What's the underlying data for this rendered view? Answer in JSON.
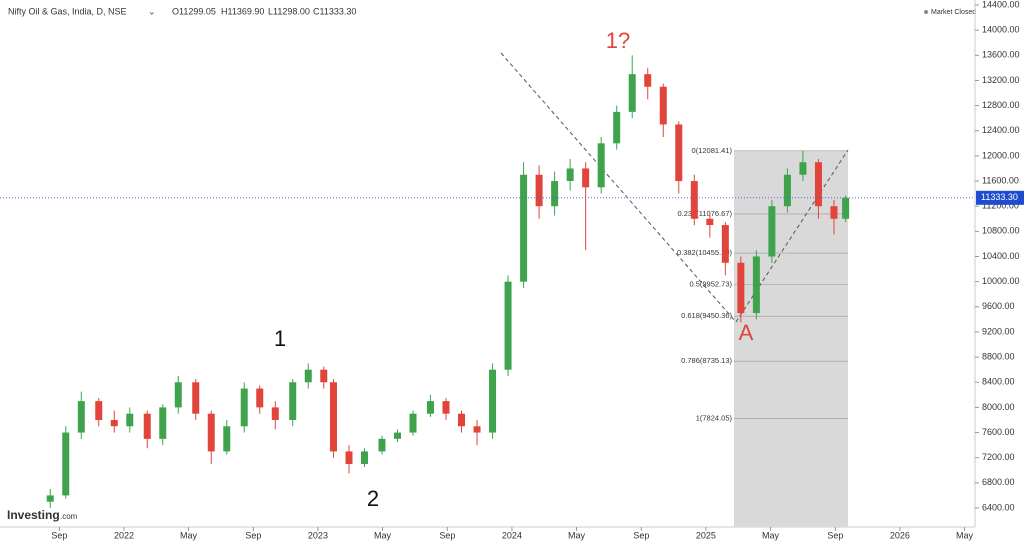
{
  "header": {
    "title": "Nifty Oil & Gas, India, D, NSE",
    "ohlc": [
      "O11299.05",
      "H11369.90",
      "L11298.00",
      "C11333.30"
    ],
    "status": "Market Closed",
    "logo": "Investing",
    "logo_suffix": ".com"
  },
  "chart_data": {
    "type": "candlestick",
    "x": [
      2021.62,
      2021.7,
      2021.78,
      2021.87,
      2021.95,
      2022.03,
      2022.12,
      2022.2,
      2022.28,
      2022.37,
      2022.45,
      2022.53,
      2022.62,
      2022.7,
      2022.78,
      2022.87,
      2022.95,
      2023.03,
      2023.08,
      2023.16,
      2023.24,
      2023.33,
      2023.41,
      2023.49,
      2023.58,
      2023.66,
      2023.74,
      2023.82,
      2023.9,
      2023.98,
      2024.06,
      2024.14,
      2024.22,
      2024.3,
      2024.38,
      2024.46,
      2024.54,
      2024.62,
      2024.7,
      2024.78,
      2024.86,
      2024.94,
      2025.02,
      2025.1,
      2025.18,
      2025.26,
      2025.34,
      2025.42,
      2025.5,
      2025.58,
      2025.66,
      2025.72
    ],
    "open": [
      6500,
      6600,
      7600,
      8100,
      7800,
      7700,
      7900,
      7500,
      8000,
      8400,
      7900,
      7300,
      7700,
      8300,
      8000,
      7800,
      8400,
      8600,
      8400,
      7300,
      7100,
      7300,
      7500,
      7600,
      7900,
      8100,
      7900,
      7700,
      7600,
      8600,
      10000,
      11700,
      11200,
      11600,
      11800,
      11500,
      12200,
      12700,
      13300,
      13100,
      12500,
      11600,
      11000,
      10900,
      10300,
      9500,
      10400,
      11200,
      11700,
      11900,
      11200,
      11000
    ],
    "high": [
      6700,
      7700,
      8250,
      8150,
      7950,
      8000,
      7950,
      8050,
      8500,
      8450,
      7950,
      7800,
      8400,
      8350,
      8100,
      8450,
      8700,
      8650,
      8450,
      7400,
      7350,
      7550,
      7650,
      7950,
      8200,
      8150,
      7950,
      7800,
      8700,
      10100,
      11900,
      11850,
      11750,
      11950,
      11900,
      12300,
      12800,
      13600,
      13400,
      13150,
      12550,
      11700,
      11100,
      10950,
      10400,
      10500,
      11300,
      11800,
      12081,
      11950,
      11300,
      11370
    ],
    "low": [
      6400,
      6550,
      7500,
      7700,
      7600,
      7600,
      7350,
      7400,
      7900,
      7800,
      7100,
      7250,
      7600,
      7900,
      7650,
      7700,
      8300,
      8300,
      7200,
      6950,
      7050,
      7250,
      7450,
      7550,
      7850,
      7800,
      7600,
      7400,
      7500,
      8500,
      9900,
      11000,
      11050,
      11450,
      10500,
      11400,
      12100,
      12600,
      12900,
      12300,
      11400,
      10900,
      10700,
      10100,
      9350,
      9400,
      10300,
      11100,
      11600,
      11000,
      10750,
      10950
    ],
    "close": [
      6600,
      7600,
      8100,
      7800,
      7700,
      7900,
      7500,
      8000,
      8400,
      7900,
      7300,
      7700,
      8300,
      8000,
      7800,
      8400,
      8600,
      8400,
      7300,
      7100,
      7300,
      7500,
      7600,
      7900,
      8100,
      7900,
      7700,
      7600,
      8600,
      10000,
      11700,
      11200,
      11600,
      11800,
      11500,
      12200,
      12700,
      13300,
      13100,
      12500,
      11600,
      11000,
      10900,
      10300,
      9500,
      10400,
      11200,
      11700,
      11900,
      11200,
      11000,
      11333.3
    ],
    "up_color": "#3fa34d",
    "down_color": "#e0443a",
    "xlim": [
      2021.361,
      2026.387
    ],
    "xticks": [
      {
        "value": 2021.667,
        "label": "Sep"
      },
      {
        "value": 2022,
        "label": "2022"
      },
      {
        "value": 2022.333,
        "label": "May"
      },
      {
        "value": 2022.667,
        "label": "Sep"
      },
      {
        "value": 2023,
        "label": "2023"
      },
      {
        "value": 2023.333,
        "label": "May"
      },
      {
        "value": 2023.667,
        "label": "Sep"
      },
      {
        "value": 2024,
        "label": "2024"
      },
      {
        "value": 2024.333,
        "label": "May"
      },
      {
        "value": 2024.667,
        "label": "Sep"
      },
      {
        "value": 2025,
        "label": "2025"
      },
      {
        "value": 2025.333,
        "label": "May"
      },
      {
        "value": 2025.667,
        "label": "Sep"
      },
      {
        "value": 2026,
        "label": "2026"
      },
      {
        "value": 2026.333,
        "label": "May"
      }
    ],
    "ylim": [
      6200,
      14400
    ],
    "yticks": [
      {
        "value": 6400,
        "label": "6400.00"
      },
      {
        "value": 6800,
        "label": "6800.00"
      },
      {
        "value": 7200,
        "label": "7200.00"
      },
      {
        "value": 7600,
        "label": "7600.00"
      },
      {
        "value": 8000,
        "label": "8000.00"
      },
      {
        "value": 8400,
        "label": "8400.00"
      },
      {
        "value": 8800,
        "label": "8800.00"
      },
      {
        "value": 9200,
        "label": "9200.00"
      },
      {
        "value": 9600,
        "label": "9600.00"
      },
      {
        "value": 10000,
        "label": "10000.00"
      },
      {
        "value": 10400,
        "label": "10400.00"
      },
      {
        "value": 10800,
        "label": "10800.00"
      },
      {
        "value": 11200,
        "label": "11200.00"
      },
      {
        "value": 11600,
        "label": "11600.00"
      },
      {
        "value": 12000,
        "label": "12000.00"
      },
      {
        "value": 12400,
        "label": "12400.00"
      },
      {
        "value": 12800,
        "label": "12800.00"
      },
      {
        "value": 13200,
        "label": "13200.00"
      },
      {
        "value": 13600,
        "label": "13600.00"
      },
      {
        "value": 14000,
        "label": "14000.00"
      },
      {
        "value": 14400,
        "label": "14400.00"
      }
    ],
    "last_price": {
      "value": 11333.3,
      "label": "11333.30"
    },
    "fib_levels": [
      {
        "value": 12081.41,
        "label": "0(12081.41)"
      },
      {
        "value": 11076.67,
        "label": "0.236(11076.67)"
      },
      {
        "value": 10455.1,
        "label": "0.382(10455.10)"
      },
      {
        "value": 9952.73,
        "label": "0.5(9952.73)"
      },
      {
        "value": 9450.36,
        "label": "0.618(9450.36)"
      },
      {
        "value": 8735.13,
        "label": "0.786(8735.13)"
      },
      {
        "value": 7824.05,
        "label": "1(7824.05)"
      }
    ],
    "annotations": [
      "1",
      "2",
      "1?",
      "A"
    ],
    "grid": false
  }
}
